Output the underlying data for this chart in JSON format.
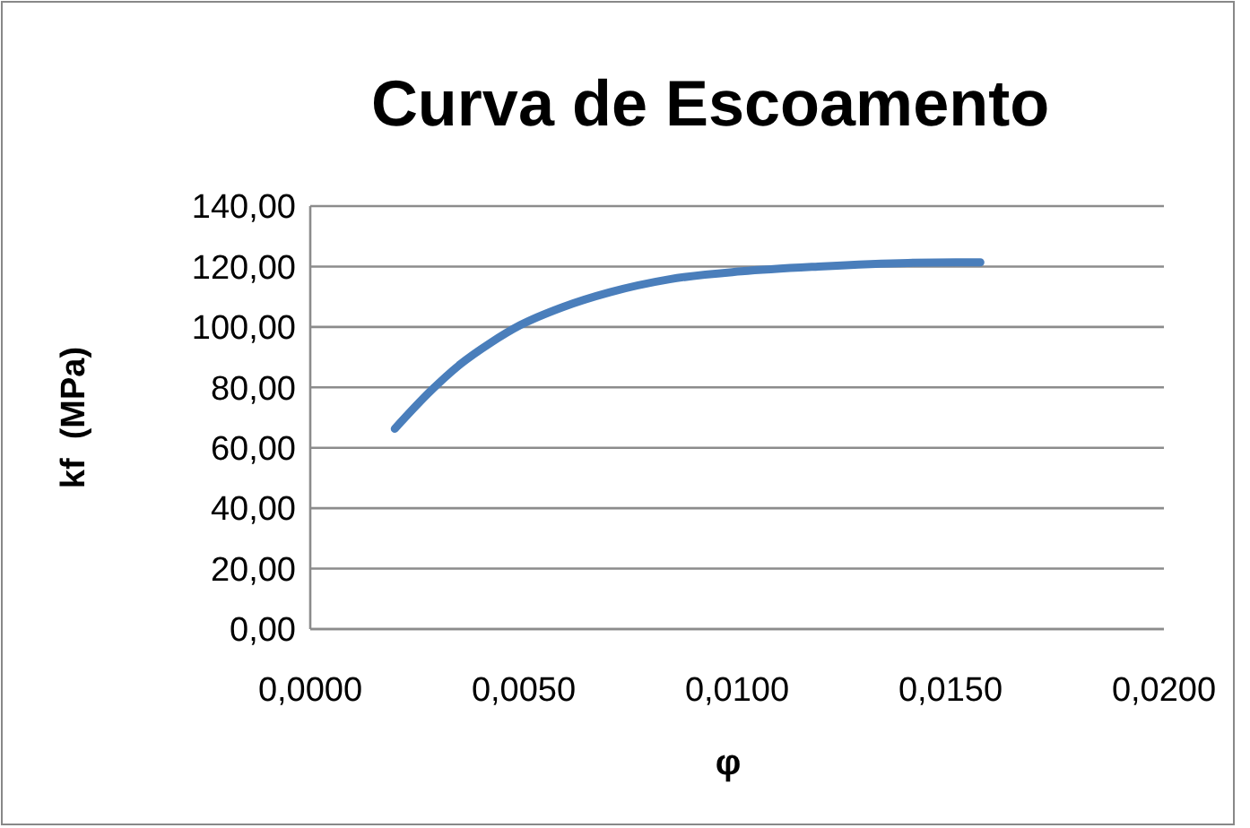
{
  "chart_data": {
    "type": "line",
    "title": "Curva de Escoamento",
    "xlabel": "φ",
    "ylabel": "kf  (MPa)",
    "x": [
      0.00198,
      0.00282,
      0.00352,
      0.00422,
      0.00492,
      0.0059,
      0.00702,
      0.00842,
      0.0101,
      0.0119,
      0.014,
      0.0157
    ],
    "series": [
      {
        "color": "#4a7ebb",
        "values": [
          66.3,
          78.8,
          87.7,
          94.7,
          100.6,
          106.5,
          111.5,
          115.8,
          118.4,
          120.0,
          121.2,
          121.4
        ]
      }
    ],
    "xlim": [
      0,
      0.02
    ],
    "xticks": [
      {
        "value": 0,
        "label": "0,0000"
      },
      {
        "value": 0.005,
        "label": "0,0050"
      },
      {
        "value": 0.01,
        "label": "0,0100"
      },
      {
        "value": 0.015,
        "label": "0,0150"
      },
      {
        "value": 0.02,
        "label": "0,0200"
      }
    ],
    "ylim": [
      0,
      140
    ],
    "yticks": [
      {
        "value": 0,
        "label": "0,00"
      },
      {
        "value": 20,
        "label": "20,00"
      },
      {
        "value": 40,
        "label": "40,00"
      },
      {
        "value": 60,
        "label": "60,00"
      },
      {
        "value": 80,
        "label": "80,00"
      },
      {
        "value": 100,
        "label": "100,00"
      },
      {
        "value": 120,
        "label": "120,00"
      },
      {
        "value": 140,
        "label": "140,00"
      }
    ],
    "grid": "y",
    "marker": "none",
    "line_style": "solid"
  }
}
